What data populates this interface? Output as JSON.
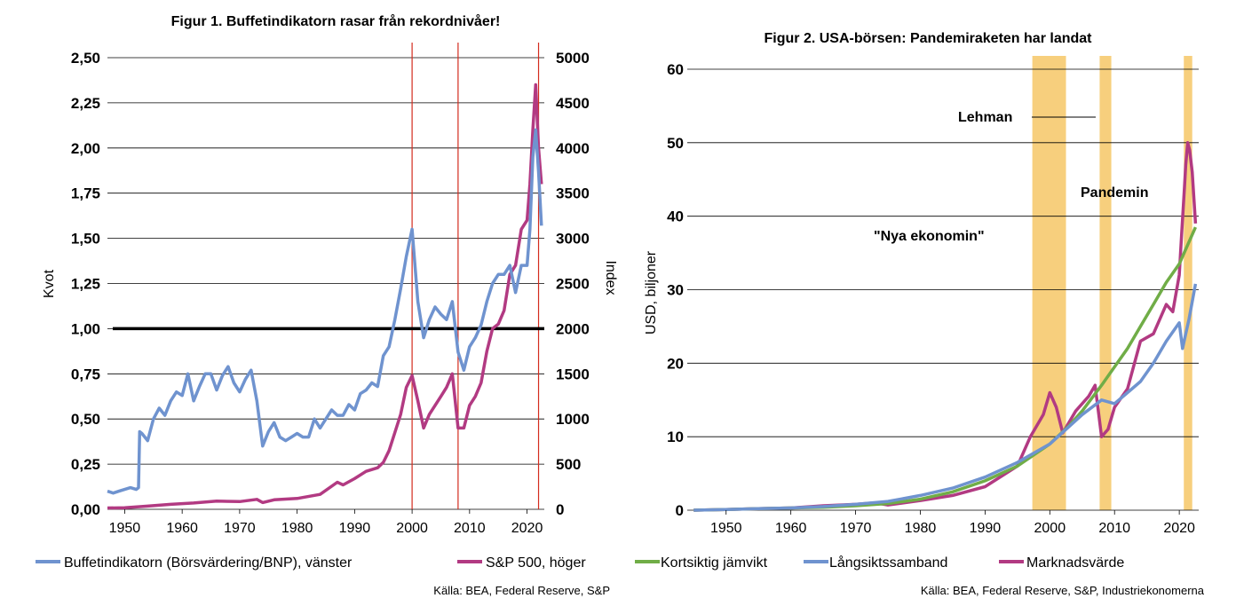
{
  "chart_data": [
    {
      "type": "line",
      "title": "Figur 1. Buffetindikatorn rasar från rekordnivåer!",
      "ylabel_left": "Kvot",
      "ylabel_right": "Index",
      "ylim_left": [
        0,
        2.5
      ],
      "ylim_right": [
        0,
        5000
      ],
      "xlim": [
        1947,
        2023
      ],
      "y_ticks_left": [
        "0,00",
        "0,25",
        "0,50",
        "0,75",
        "1,00",
        "1,25",
        "1,50",
        "1,75",
        "2,00",
        "2,25",
        "2,50"
      ],
      "y_ticks_right": [
        "0",
        "500",
        "1000",
        "1500",
        "2000",
        "2500",
        "3000",
        "3500",
        "4000",
        "4500",
        "5000"
      ],
      "x_ticks": [
        "1950",
        "1960",
        "1970",
        "1980",
        "1990",
        "2000",
        "2010",
        "2020"
      ],
      "reference_line": 1.0,
      "vertical_markers": [
        2000,
        2008,
        2022
      ],
      "grid": true,
      "legend_position": "bottom",
      "source": "Källa: BEA, Federal Reserve, S&P",
      "colors": {
        "buffett": "#6f93cf",
        "sp500": "#b23a82",
        "ref": "#000000",
        "marker": "#d42c1e"
      },
      "series": [
        {
          "name": "Buffetindikatorn (Börsvärdering/BNP), vänster",
          "axis": "left",
          "x": [
            1947,
            1948,
            1949,
            1950,
            1951,
            1952,
            1952.4,
            1952.6,
            1953,
            1954,
            1955,
            1956,
            1957,
            1958,
            1959,
            1960,
            1961,
            1962,
            1963,
            1964,
            1965,
            1966,
            1967,
            1968,
            1969,
            1970,
            1971,
            1972,
            1973,
            1974,
            1975,
            1976,
            1977,
            1978,
            1979,
            1980,
            1981,
            1982,
            1983,
            1984,
            1985,
            1986,
            1987,
            1988,
            1989,
            1990,
            1991,
            1992,
            1993,
            1994,
            1995,
            1996,
            1997,
            1998,
            1999,
            2000,
            2001,
            2002,
            2003,
            2004,
            2005,
            2006,
            2007,
            2008,
            2009,
            2010,
            2011,
            2012,
            2013,
            2014,
            2015,
            2016,
            2017,
            2018,
            2019,
            2020,
            2020.5,
            2021,
            2021.5,
            2022,
            2022.5
          ],
          "values": [
            0.1,
            0.09,
            0.1,
            0.11,
            0.12,
            0.11,
            0.12,
            0.43,
            0.42,
            0.38,
            0.5,
            0.56,
            0.52,
            0.6,
            0.65,
            0.63,
            0.75,
            0.6,
            0.68,
            0.75,
            0.75,
            0.66,
            0.74,
            0.79,
            0.7,
            0.65,
            0.72,
            0.77,
            0.6,
            0.35,
            0.43,
            0.48,
            0.4,
            0.38,
            0.4,
            0.42,
            0.4,
            0.4,
            0.5,
            0.45,
            0.5,
            0.55,
            0.52,
            0.52,
            0.58,
            0.55,
            0.64,
            0.66,
            0.7,
            0.68,
            0.85,
            0.9,
            1.05,
            1.22,
            1.4,
            1.55,
            1.15,
            0.95,
            1.05,
            1.12,
            1.08,
            1.05,
            1.15,
            0.87,
            0.77,
            0.9,
            0.95,
            1.02,
            1.15,
            1.25,
            1.3,
            1.3,
            1.35,
            1.2,
            1.35,
            1.35,
            1.55,
            1.95,
            2.1,
            1.87,
            1.57
          ]
        },
        {
          "name": "S&P 500, höger",
          "axis": "right",
          "x": [
            1947,
            1950,
            1954,
            1958,
            1962,
            1966,
            1970,
            1973,
            1974,
            1976,
            1980,
            1984,
            1987,
            1988,
            1990,
            1992,
            1994,
            1995,
            1996,
            1997,
            1998,
            1999,
            2000,
            2001,
            2002,
            2003,
            2004,
            2005,
            2006,
            2007,
            2008,
            2009,
            2010,
            2011,
            2012,
            2013,
            2014,
            2015,
            2016,
            2017,
            2018,
            2019,
            2020,
            2020.5,
            2021,
            2021.5,
            2022,
            2022.5
          ],
          "values": [
            15,
            17,
            35,
            55,
            70,
            90,
            85,
            110,
            75,
            105,
            120,
            165,
            300,
            270,
            340,
            420,
            460,
            520,
            650,
            850,
            1050,
            1350,
            1480,
            1200,
            900,
            1050,
            1150,
            1250,
            1350,
            1500,
            900,
            900,
            1150,
            1250,
            1400,
            1750,
            2000,
            2050,
            2200,
            2600,
            2700,
            3100,
            3200,
            3600,
            4200,
            4700,
            4000,
            3600
          ]
        }
      ]
    },
    {
      "type": "line",
      "title": "Figur 2. USA-börsen: Pandemiraketen har landat",
      "ylabel": "USD, biljoner",
      "ylim": [
        0,
        60
      ],
      "xlim": [
        1944,
        2023
      ],
      "y_ticks": [
        "0",
        "10",
        "20",
        "30",
        "40",
        "50",
        "60"
      ],
      "x_ticks": [
        "1950",
        "1960",
        "1970",
        "1980",
        "1990",
        "2000",
        "2010",
        "2020"
      ],
      "shaded_periods": [
        [
          1997.3,
          2002.5
        ],
        [
          2007.7,
          2009.5
        ],
        [
          2020.7,
          2022.0
        ]
      ],
      "annotations": [
        "Lehman",
        "Pandemin",
        "\"Nya ekonomin\""
      ],
      "grid": true,
      "legend_position": "bottom",
      "source": "Källa: BEA, Federal Reserve, S&P, Industriekonomerna",
      "colors": {
        "kort": "#70ad47",
        "lang": "#6f93cf",
        "mark": "#b23a82",
        "shade": "#f5c35c"
      },
      "series": [
        {
          "name": "Kortsiktig jämvikt",
          "x": [
            1945,
            1950,
            1955,
            1960,
            1965,
            1970,
            1975,
            1980,
            1985,
            1990,
            1995,
            2000,
            2003,
            2005,
            2008,
            2010,
            2012,
            2014,
            2016,
            2018,
            2020,
            2022.5
          ],
          "values": [
            0,
            0.1,
            0.2,
            0.3,
            0.4,
            0.6,
            0.9,
            1.5,
            2.5,
            4.0,
            6.0,
            9.0,
            11.5,
            13.5,
            17.0,
            19.5,
            22.0,
            25.0,
            28.0,
            31.0,
            33.5,
            38.5
          ]
        },
        {
          "name": "Långsiktssamband",
          "x": [
            1945,
            1950,
            1955,
            1960,
            1965,
            1970,
            1975,
            1980,
            1985,
            1990,
            1995,
            2000,
            2005,
            2008,
            2010,
            2012,
            2014,
            2016,
            2018,
            2020,
            2020.5,
            2021,
            2021.5,
            2022.5
          ],
          "values": [
            0,
            0.1,
            0.2,
            0.3,
            0.5,
            0.8,
            1.2,
            2.0,
            3.0,
            4.5,
            6.5,
            9.0,
            13.0,
            15.0,
            14.5,
            16.0,
            17.5,
            20.0,
            23.0,
            25.5,
            22.0,
            24.0,
            26.0,
            30.8
          ]
        },
        {
          "name": "Marknadsvärde",
          "x": [
            1945,
            1950,
            1955,
            1960,
            1965,
            1970,
            1973,
            1975,
            1980,
            1985,
            1990,
            1995,
            1997,
            1999,
            2000,
            2001,
            2002,
            2003,
            2004,
            2006,
            2007,
            2008,
            2009,
            2010,
            2012,
            2014,
            2016,
            2018,
            2019,
            2020,
            2020.4,
            2020.8,
            2021,
            2021.3,
            2021.6,
            2022,
            2022.5
          ],
          "values": [
            0,
            0.1,
            0.2,
            0.3,
            0.6,
            0.8,
            1.0,
            0.7,
            1.3,
            2.0,
            3.2,
            6.0,
            10.0,
            13.0,
            16.0,
            14.0,
            10.5,
            12.0,
            13.5,
            15.5,
            17.0,
            10.0,
            11.0,
            14.0,
            16.5,
            23.0,
            24.0,
            28.0,
            27.0,
            32.0,
            38.0,
            44.0,
            47.0,
            50.0,
            49.0,
            46.0,
            39.0
          ]
        }
      ]
    }
  ]
}
